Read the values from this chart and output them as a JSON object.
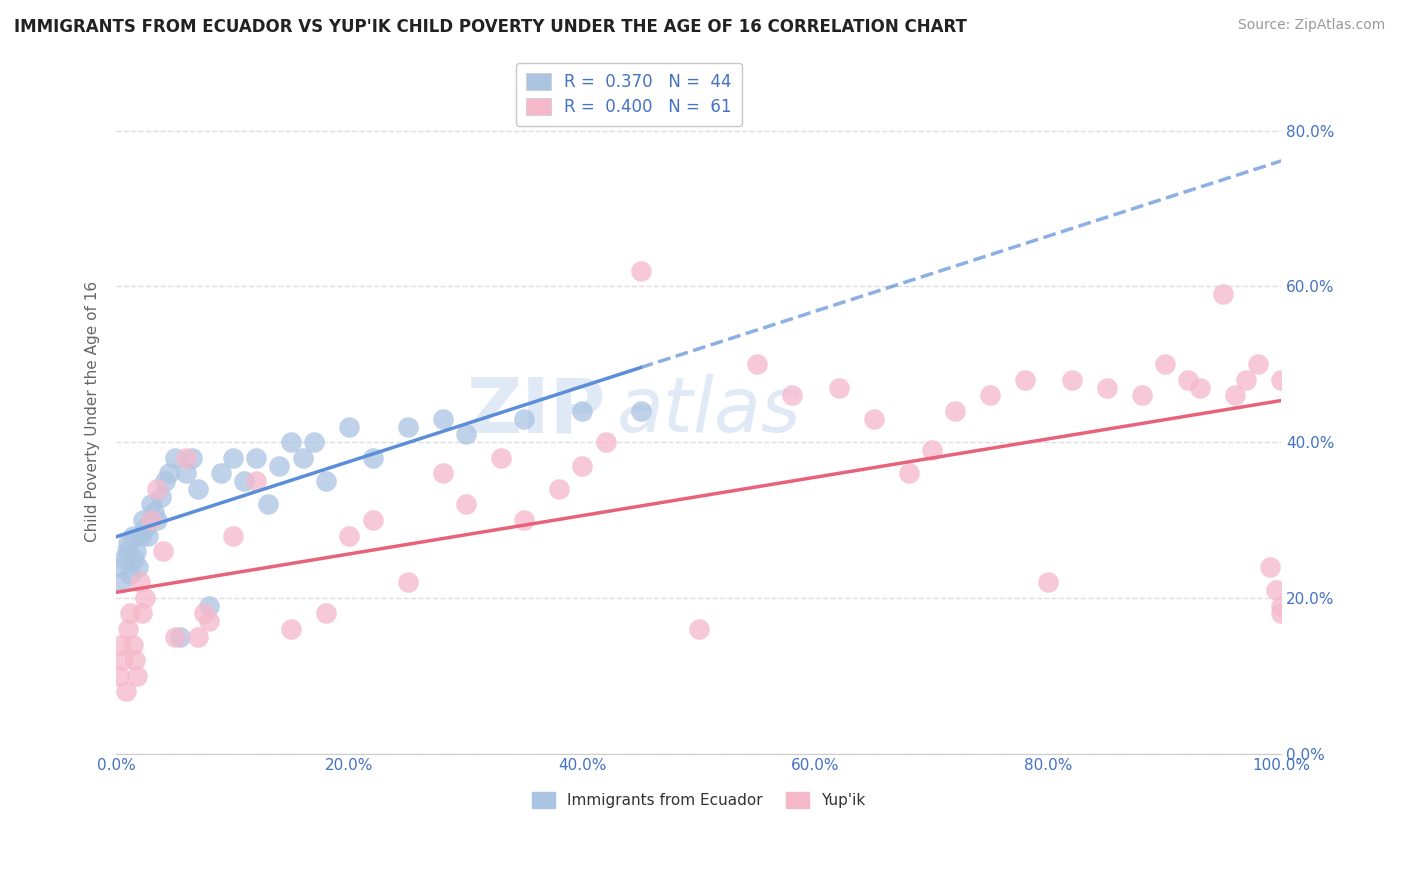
{
  "title": "IMMIGRANTS FROM ECUADOR VS YUP'IK CHILD POVERTY UNDER THE AGE OF 16 CORRELATION CHART",
  "source": "Source: ZipAtlas.com",
  "ylabel": "Child Poverty Under the Age of 16",
  "xlabel_blue": "Immigrants from Ecuador",
  "xlabel_pink": "Yup'ik",
  "legend_blue_r": "0.370",
  "legend_blue_n": "44",
  "legend_pink_r": "0.400",
  "legend_pink_n": "61",
  "blue_color": "#aac4e2",
  "blue_line_color": "#5b8dd9",
  "pink_color": "#f5b8cb",
  "pink_line_color": "#e8637a",
  "axis_label_color": "#4472c4",
  "watermark_zip": "ZIP",
  "watermark_atlas": "atlas",
  "blue_x": [
    0.3,
    0.5,
    0.7,
    0.9,
    1.0,
    1.2,
    1.4,
    1.5,
    1.7,
    1.9,
    2.1,
    2.3,
    2.5,
    2.7,
    3.0,
    3.2,
    3.5,
    3.8,
    4.2,
    4.5,
    5.0,
    5.5,
    6.0,
    6.5,
    7.0,
    8.0,
    9.0,
    10.0,
    11.0,
    12.0,
    13.0,
    14.0,
    15.0,
    16.0,
    17.0,
    18.0,
    20.0,
    22.0,
    25.0,
    28.0,
    30.0,
    35.0,
    40.0,
    45.0
  ],
  "blue_y": [
    24.0,
    22.0,
    25.0,
    26.0,
    27.0,
    23.0,
    28.0,
    25.0,
    26.0,
    24.0,
    28.0,
    30.0,
    29.0,
    28.0,
    32.0,
    31.0,
    30.0,
    33.0,
    35.0,
    36.0,
    38.0,
    15.0,
    36.0,
    38.0,
    34.0,
    19.0,
    36.0,
    38.0,
    35.0,
    38.0,
    32.0,
    37.0,
    40.0,
    38.0,
    40.0,
    35.0,
    42.0,
    38.0,
    42.0,
    43.0,
    41.0,
    43.0,
    44.0,
    44.0
  ],
  "pink_x": [
    0.2,
    0.4,
    0.6,
    0.8,
    1.0,
    1.2,
    1.4,
    1.6,
    1.8,
    2.0,
    2.2,
    2.5,
    3.0,
    3.5,
    4.0,
    5.0,
    6.0,
    7.0,
    7.5,
    8.0,
    10.0,
    12.0,
    15.0,
    18.0,
    20.0,
    22.0,
    25.0,
    28.0,
    30.0,
    33.0,
    35.0,
    38.0,
    40.0,
    42.0,
    45.0,
    50.0,
    55.0,
    58.0,
    62.0,
    65.0,
    68.0,
    70.0,
    72.0,
    75.0,
    78.0,
    80.0,
    82.0,
    85.0,
    88.0,
    90.0,
    92.0,
    93.0,
    95.0,
    96.0,
    97.0,
    98.0,
    99.0,
    99.5,
    100.0,
    100.0,
    100.0
  ],
  "pink_y": [
    10.0,
    14.0,
    12.0,
    8.0,
    16.0,
    18.0,
    14.0,
    12.0,
    10.0,
    22.0,
    18.0,
    20.0,
    30.0,
    34.0,
    26.0,
    15.0,
    38.0,
    15.0,
    18.0,
    17.0,
    28.0,
    35.0,
    16.0,
    18.0,
    28.0,
    30.0,
    22.0,
    36.0,
    32.0,
    38.0,
    30.0,
    34.0,
    37.0,
    40.0,
    62.0,
    16.0,
    50.0,
    46.0,
    47.0,
    43.0,
    36.0,
    39.0,
    44.0,
    46.0,
    48.0,
    22.0,
    48.0,
    47.0,
    46.0,
    50.0,
    48.0,
    47.0,
    59.0,
    46.0,
    48.0,
    50.0,
    24.0,
    21.0,
    48.0,
    18.0,
    19.0
  ],
  "blue_trend": [
    25.0,
    43.0
  ],
  "pink_trend": [
    25.0,
    40.0
  ],
  "xlim": [
    0.0,
    100.0
  ],
  "ylim": [
    0.0,
    88.0
  ],
  "yticks": [
    0.0,
    20.0,
    40.0,
    60.0,
    80.0
  ],
  "xticks": [
    0.0,
    20.0,
    40.0,
    60.0,
    80.0,
    100.0
  ]
}
